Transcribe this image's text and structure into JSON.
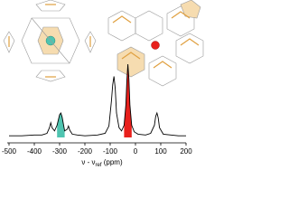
{
  "chart_data": {
    "type": "line",
    "x": [
      -500,
      -450,
      -400,
      -370,
      -350,
      -340,
      -335,
      -330,
      -320,
      -310,
      -300,
      -295,
      -290,
      -280,
      -270,
      -265,
      -260,
      -250,
      -230,
      -200,
      -150,
      -120,
      -105,
      -95,
      -90,
      -85,
      -80,
      -75,
      -65,
      -55,
      -45,
      -38,
      -34,
      -30,
      -26,
      -22,
      -15,
      -5,
      10,
      40,
      60,
      75,
      80,
      85,
      90,
      95,
      110,
      140,
      170,
      200
    ],
    "series": [
      {
        "color": "#000000",
        "values": [
          2,
          2,
          3,
          3,
          5,
          12,
          18,
          12,
          8,
          15,
          28,
          30,
          25,
          8,
          10,
          14,
          9,
          4,
          3,
          2,
          3,
          5,
          14,
          45,
          65,
          75,
          60,
          30,
          12,
          8,
          15,
          40,
          70,
          90,
          72,
          40,
          15,
          7,
          4,
          3,
          5,
          15,
          26,
          30,
          24,
          12,
          4,
          3,
          2,
          2
        ]
      }
    ],
    "fills": [
      {
        "xrange": [
          -310,
          -280
        ],
        "color": "#4fc4b0"
      },
      {
        "xrange": [
          -45,
          -15
        ],
        "color": "#e8201c"
      }
    ],
    "xlim": [
      -500,
      200
    ],
    "xticks": [
      -500,
      -400,
      -300,
      -200,
      -100,
      0,
      100,
      200
    ],
    "ylim": [
      0,
      100
    ],
    "xlabel_parts": [
      "ν - ν",
      "ref",
      " (ppm)"
    ]
  }
}
